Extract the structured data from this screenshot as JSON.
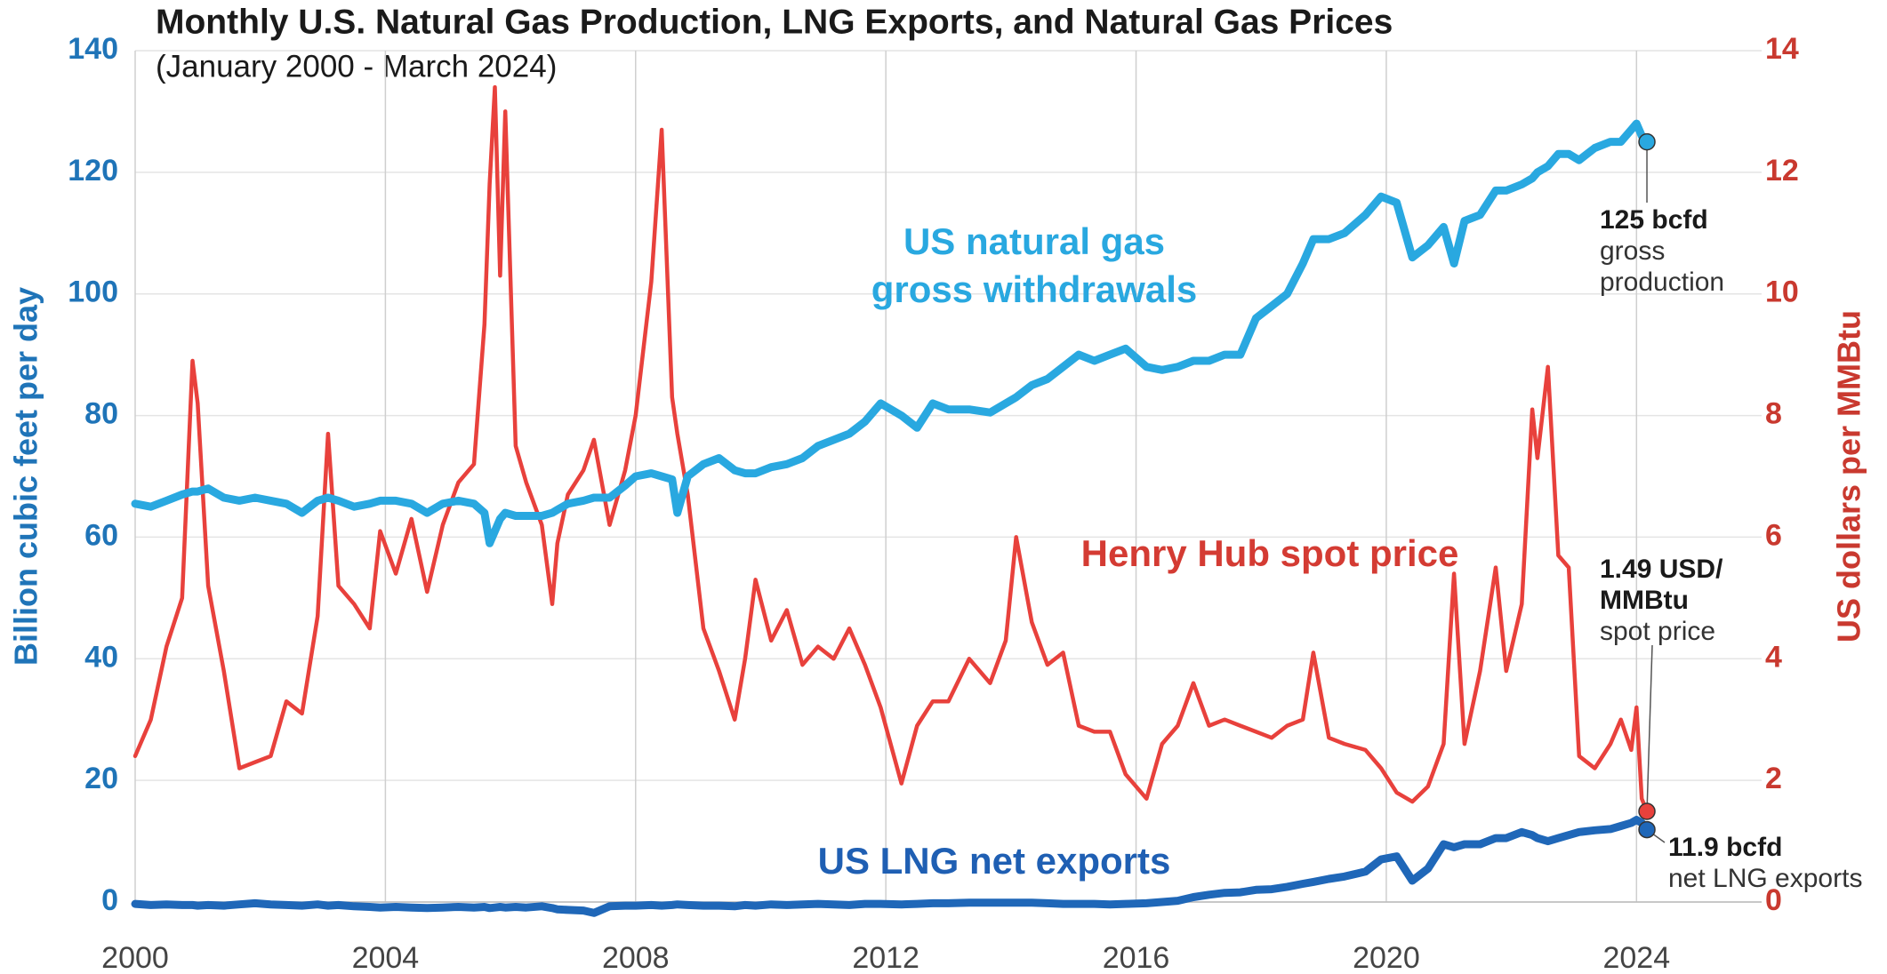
{
  "chart_data": {
    "type": "line",
    "title": "Monthly U.S. Natural Gas Production, LNG Exports, and Natural Gas Prices",
    "subtitle": "(January 2000 - March 2024)",
    "ylabel": "Billion cubic feet per day",
    "y2label": "US dollars per MMBtu",
    "xlim": [
      2000,
      2026
    ],
    "xticks": [
      2000,
      2004,
      2008,
      2012,
      2016,
      2020,
      2024
    ],
    "ylim": [
      0,
      140
    ],
    "yticks": [
      0,
      20,
      40,
      60,
      80,
      100,
      120,
      140
    ],
    "y2lim": [
      0,
      14
    ],
    "y2ticks": [
      0,
      2,
      4,
      6,
      8,
      10,
      12,
      14
    ],
    "grid": true,
    "x": [
      "2000-01",
      "2000-04",
      "2000-07",
      "2000-10",
      "2000-12",
      "2001-01",
      "2001-03",
      "2001-06",
      "2001-09",
      "2001-12",
      "2002-03",
      "2002-06",
      "2002-09",
      "2002-12",
      "2003-02",
      "2003-04",
      "2003-07",
      "2003-10",
      "2003-12",
      "2004-03",
      "2004-06",
      "2004-09",
      "2004-12",
      "2005-03",
      "2005-06",
      "2005-08",
      "2005-09",
      "2005-10",
      "2005-11",
      "2005-12",
      "2006-02",
      "2006-04",
      "2006-07",
      "2006-09",
      "2006-10",
      "2006-12",
      "2007-03",
      "2007-05",
      "2007-08",
      "2007-11",
      "2008-01",
      "2008-04",
      "2008-06",
      "2008-08",
      "2008-09",
      "2008-11",
      "2009-02",
      "2009-05",
      "2009-08",
      "2009-10",
      "2009-12",
      "2010-03",
      "2010-06",
      "2010-09",
      "2010-12",
      "2011-03",
      "2011-06",
      "2011-09",
      "2011-12",
      "2012-04",
      "2012-07",
      "2012-10",
      "2013-01",
      "2013-05",
      "2013-09",
      "2013-12",
      "2014-02",
      "2014-05",
      "2014-08",
      "2014-11",
      "2015-02",
      "2015-05",
      "2015-08",
      "2015-11",
      "2016-03",
      "2016-06",
      "2016-09",
      "2016-12",
      "2017-03",
      "2017-06",
      "2017-09",
      "2017-12",
      "2018-03",
      "2018-06",
      "2018-09",
      "2018-11",
      "2019-02",
      "2019-05",
      "2019-09",
      "2019-12",
      "2020-03",
      "2020-06",
      "2020-09",
      "2020-12",
      "2021-02",
      "2021-04",
      "2021-07",
      "2021-10",
      "2021-12",
      "2022-03",
      "2022-05",
      "2022-06",
      "2022-08",
      "2022-10",
      "2022-12",
      "2023-02",
      "2023-05",
      "2023-08",
      "2023-10",
      "2023-12",
      "2024-01",
      "2024-02",
      "2024-03"
    ],
    "series": [
      {
        "name": "Henry Hub spot price",
        "color": "#e8413c",
        "axis": "y2",
        "values": [
          2.4,
          3.0,
          4.2,
          5.0,
          8.9,
          8.2,
          5.2,
          3.8,
          2.2,
          2.3,
          2.4,
          3.3,
          3.1,
          4.7,
          7.7,
          5.2,
          4.9,
          4.5,
          6.1,
          5.4,
          6.3,
          5.1,
          6.2,
          6.9,
          7.2,
          9.5,
          11.8,
          13.4,
          10.3,
          13.0,
          7.5,
          6.9,
          6.2,
          4.9,
          5.9,
          6.7,
          7.1,
          7.6,
          6.2,
          7.1,
          8.0,
          10.2,
          12.7,
          8.3,
          7.7,
          6.7,
          4.5,
          3.8,
          3.0,
          4.0,
          5.3,
          4.3,
          4.8,
          3.9,
          4.2,
          4.0,
          4.5,
          3.9,
          3.2,
          1.95,
          2.9,
          3.3,
          3.3,
          4.0,
          3.6,
          4.3,
          6.0,
          4.6,
          3.9,
          4.1,
          2.9,
          2.8,
          2.8,
          2.1,
          1.7,
          2.6,
          2.9,
          3.6,
          2.9,
          3.0,
          2.9,
          2.8,
          2.7,
          2.9,
          3.0,
          4.1,
          2.7,
          2.6,
          2.5,
          2.2,
          1.8,
          1.65,
          1.9,
          2.6,
          5.4,
          2.6,
          3.8,
          5.5,
          3.8,
          4.9,
          8.1,
          7.3,
          8.8,
          5.7,
          5.5,
          2.4,
          2.2,
          2.6,
          3.0,
          2.5,
          3.2,
          1.7,
          1.49
        ]
      },
      {
        "name": "US natural gas gross withdrawals",
        "color": "#29a8e0",
        "values": [
          65.5,
          65,
          66,
          67,
          67.5,
          67.5,
          68,
          66.5,
          66,
          66.5,
          66,
          65.5,
          64,
          66,
          66.5,
          66,
          65,
          65.5,
          66,
          66,
          65.5,
          64,
          65.5,
          66,
          65.5,
          64,
          59,
          61,
          63,
          64,
          63.5,
          63.5,
          63.5,
          64,
          64.5,
          65.5,
          66,
          66.5,
          66.5,
          68.5,
          70,
          70.5,
          70,
          69.5,
          64,
          70,
          72,
          73,
          71,
          70.5,
          70.5,
          71.5,
          72,
          73,
          75,
          76,
          77,
          79,
          82,
          80,
          78,
          82,
          81,
          81,
          80.5,
          82,
          83,
          85,
          86,
          88,
          90,
          89,
          90,
          91,
          88,
          87.5,
          88,
          89,
          89,
          90,
          90,
          96,
          98,
          100,
          105,
          109,
          109,
          110,
          113,
          116,
          115,
          106,
          108,
          111,
          105,
          112,
          113,
          117,
          117,
          118,
          119,
          120,
          121,
          123,
          123,
          122,
          124,
          125,
          125,
          127,
          128,
          126,
          125
        ]
      },
      {
        "name": "US LNG net exports",
        "color": "#1f67b8",
        "values": [
          -0.3,
          -0.5,
          -0.4,
          -0.5,
          -0.5,
          -0.6,
          -0.5,
          -0.6,
          -0.4,
          -0.2,
          -0.4,
          -0.5,
          -0.6,
          -0.4,
          -0.6,
          -0.5,
          -0.7,
          -0.8,
          -0.9,
          -0.8,
          -0.9,
          -1.0,
          -0.9,
          -0.8,
          -0.9,
          -0.8,
          -1.0,
          -0.9,
          -0.8,
          -0.9,
          -0.8,
          -0.9,
          -0.7,
          -1.0,
          -1.2,
          -1.3,
          -1.4,
          -1.8,
          -0.7,
          -0.6,
          -0.6,
          -0.5,
          -0.6,
          -0.5,
          -0.4,
          -0.5,
          -0.6,
          -0.6,
          -0.7,
          -0.5,
          -0.6,
          -0.4,
          -0.5,
          -0.4,
          -0.3,
          -0.4,
          -0.5,
          -0.3,
          -0.3,
          -0.4,
          -0.3,
          -0.2,
          -0.2,
          -0.1,
          -0.1,
          -0.1,
          -0.1,
          -0.1,
          -0.2,
          -0.3,
          -0.3,
          -0.3,
          -0.4,
          -0.3,
          -0.2,
          0.0,
          0.2,
          0.8,
          1.2,
          1.5,
          1.6,
          2.0,
          2.1,
          2.5,
          3.0,
          3.3,
          3.8,
          4.2,
          5.0,
          7.0,
          7.5,
          3.5,
          5.5,
          9.5,
          9.0,
          9.5,
          9.5,
          10.5,
          10.5,
          11.5,
          11.0,
          10.5,
          10,
          10.5,
          11,
          11.5,
          11.8,
          12.0,
          12.5,
          13.0,
          13.5,
          13,
          11.9
        ]
      }
    ],
    "annotations": [
      {
        "title": "125 bcfd",
        "text": [
          "gross",
          "production"
        ]
      },
      {
        "title": "1.49 USD/",
        "text": [
          "MMBtu",
          "spot price"
        ]
      },
      {
        "title": "11.9 bcfd",
        "text": [
          "net LNG exports"
        ]
      }
    ]
  }
}
